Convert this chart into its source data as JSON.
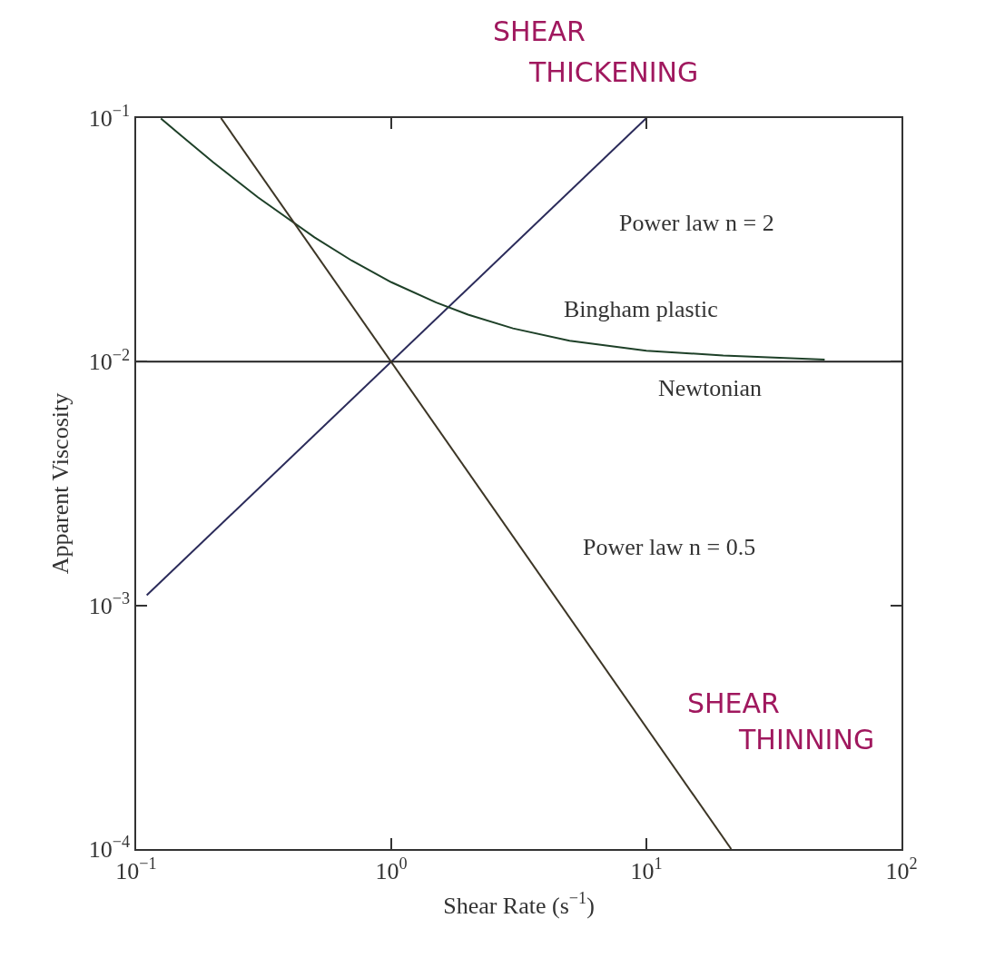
{
  "chart_data": {
    "type": "line",
    "xlabel": "Shear Rate (s$^{−1}$)",
    "ylabel": "Apparent Viscosity",
    "log": "xy",
    "marker": "none",
    "line_style": "solid",
    "xlim": [
      0.1,
      100
    ],
    "ylim": [
      0.0001,
      0.1
    ],
    "xticks": [
      {
        "value": 0.1,
        "label": "10$^{−1}$"
      },
      {
        "value": 1,
        "label": "10$^{0}$"
      },
      {
        "value": 10,
        "label": "10$^{1}$"
      },
      {
        "value": 100,
        "label": "10$^{2}$"
      }
    ],
    "yticks": [
      {
        "value": 0.0001,
        "label": "10$^{−4}$"
      },
      {
        "value": 0.001,
        "label": "10$^{−3}$"
      },
      {
        "value": 0.01,
        "label": "10$^{−2}$"
      },
      {
        "value": 0.1,
        "label": "10$^{−1}$"
      }
    ],
    "series": [
      {
        "color": "#2b2b5a",
        "x": [
          0.11,
          10
        ],
        "values": [
          0.0011,
          0.1
        ]
      },
      {
        "color": "#1e4028",
        "x": [
          0.125,
          0.15,
          0.2,
          0.3,
          0.5,
          0.7,
          1,
          1.5,
          2,
          3,
          5,
          10,
          20,
          50
        ],
        "values": [
          0.0996,
          0.0847,
          0.066,
          0.0473,
          0.0324,
          0.026,
          0.0212,
          0.0175,
          0.0156,
          0.0137,
          0.0122,
          0.0111,
          0.0106,
          0.0102
        ]
      },
      {
        "color": "#222222",
        "x": [
          0.1,
          100
        ],
        "values": [
          0.01,
          0.01
        ]
      },
      {
        "color": "#3d3626",
        "x": [
          0.215,
          21.5
        ],
        "values": [
          0.1,
          0.0001
        ]
      }
    ],
    "annotations": [
      "Power law n = 2",
      "Bingham plastic",
      "Newtonian",
      "Power law n = 0.5",
      "SHEAR",
      "THICKENING",
      "SHEAR",
      "THINNING"
    ]
  }
}
